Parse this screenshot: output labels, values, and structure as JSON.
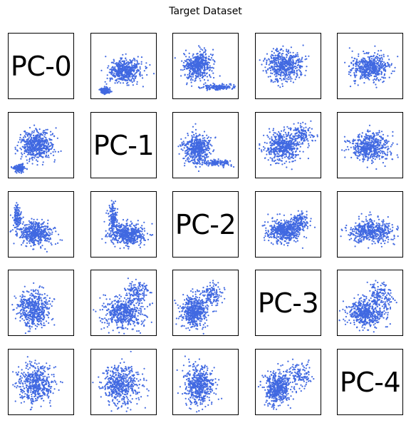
{
  "title": "Target Dataset",
  "chart_data": {
    "type": "scatter",
    "layout": "pair-grid",
    "title": "Target Dataset",
    "variables": [
      "PC-0",
      "PC-1",
      "PC-2",
      "PC-3",
      "PC-4"
    ],
    "diagonal_labels": [
      "PC-0",
      "PC-1",
      "PC-2",
      "PC-3",
      "PC-4"
    ],
    "point_color": "#4169e1",
    "axes_ticks": false,
    "grid": false
  }
}
